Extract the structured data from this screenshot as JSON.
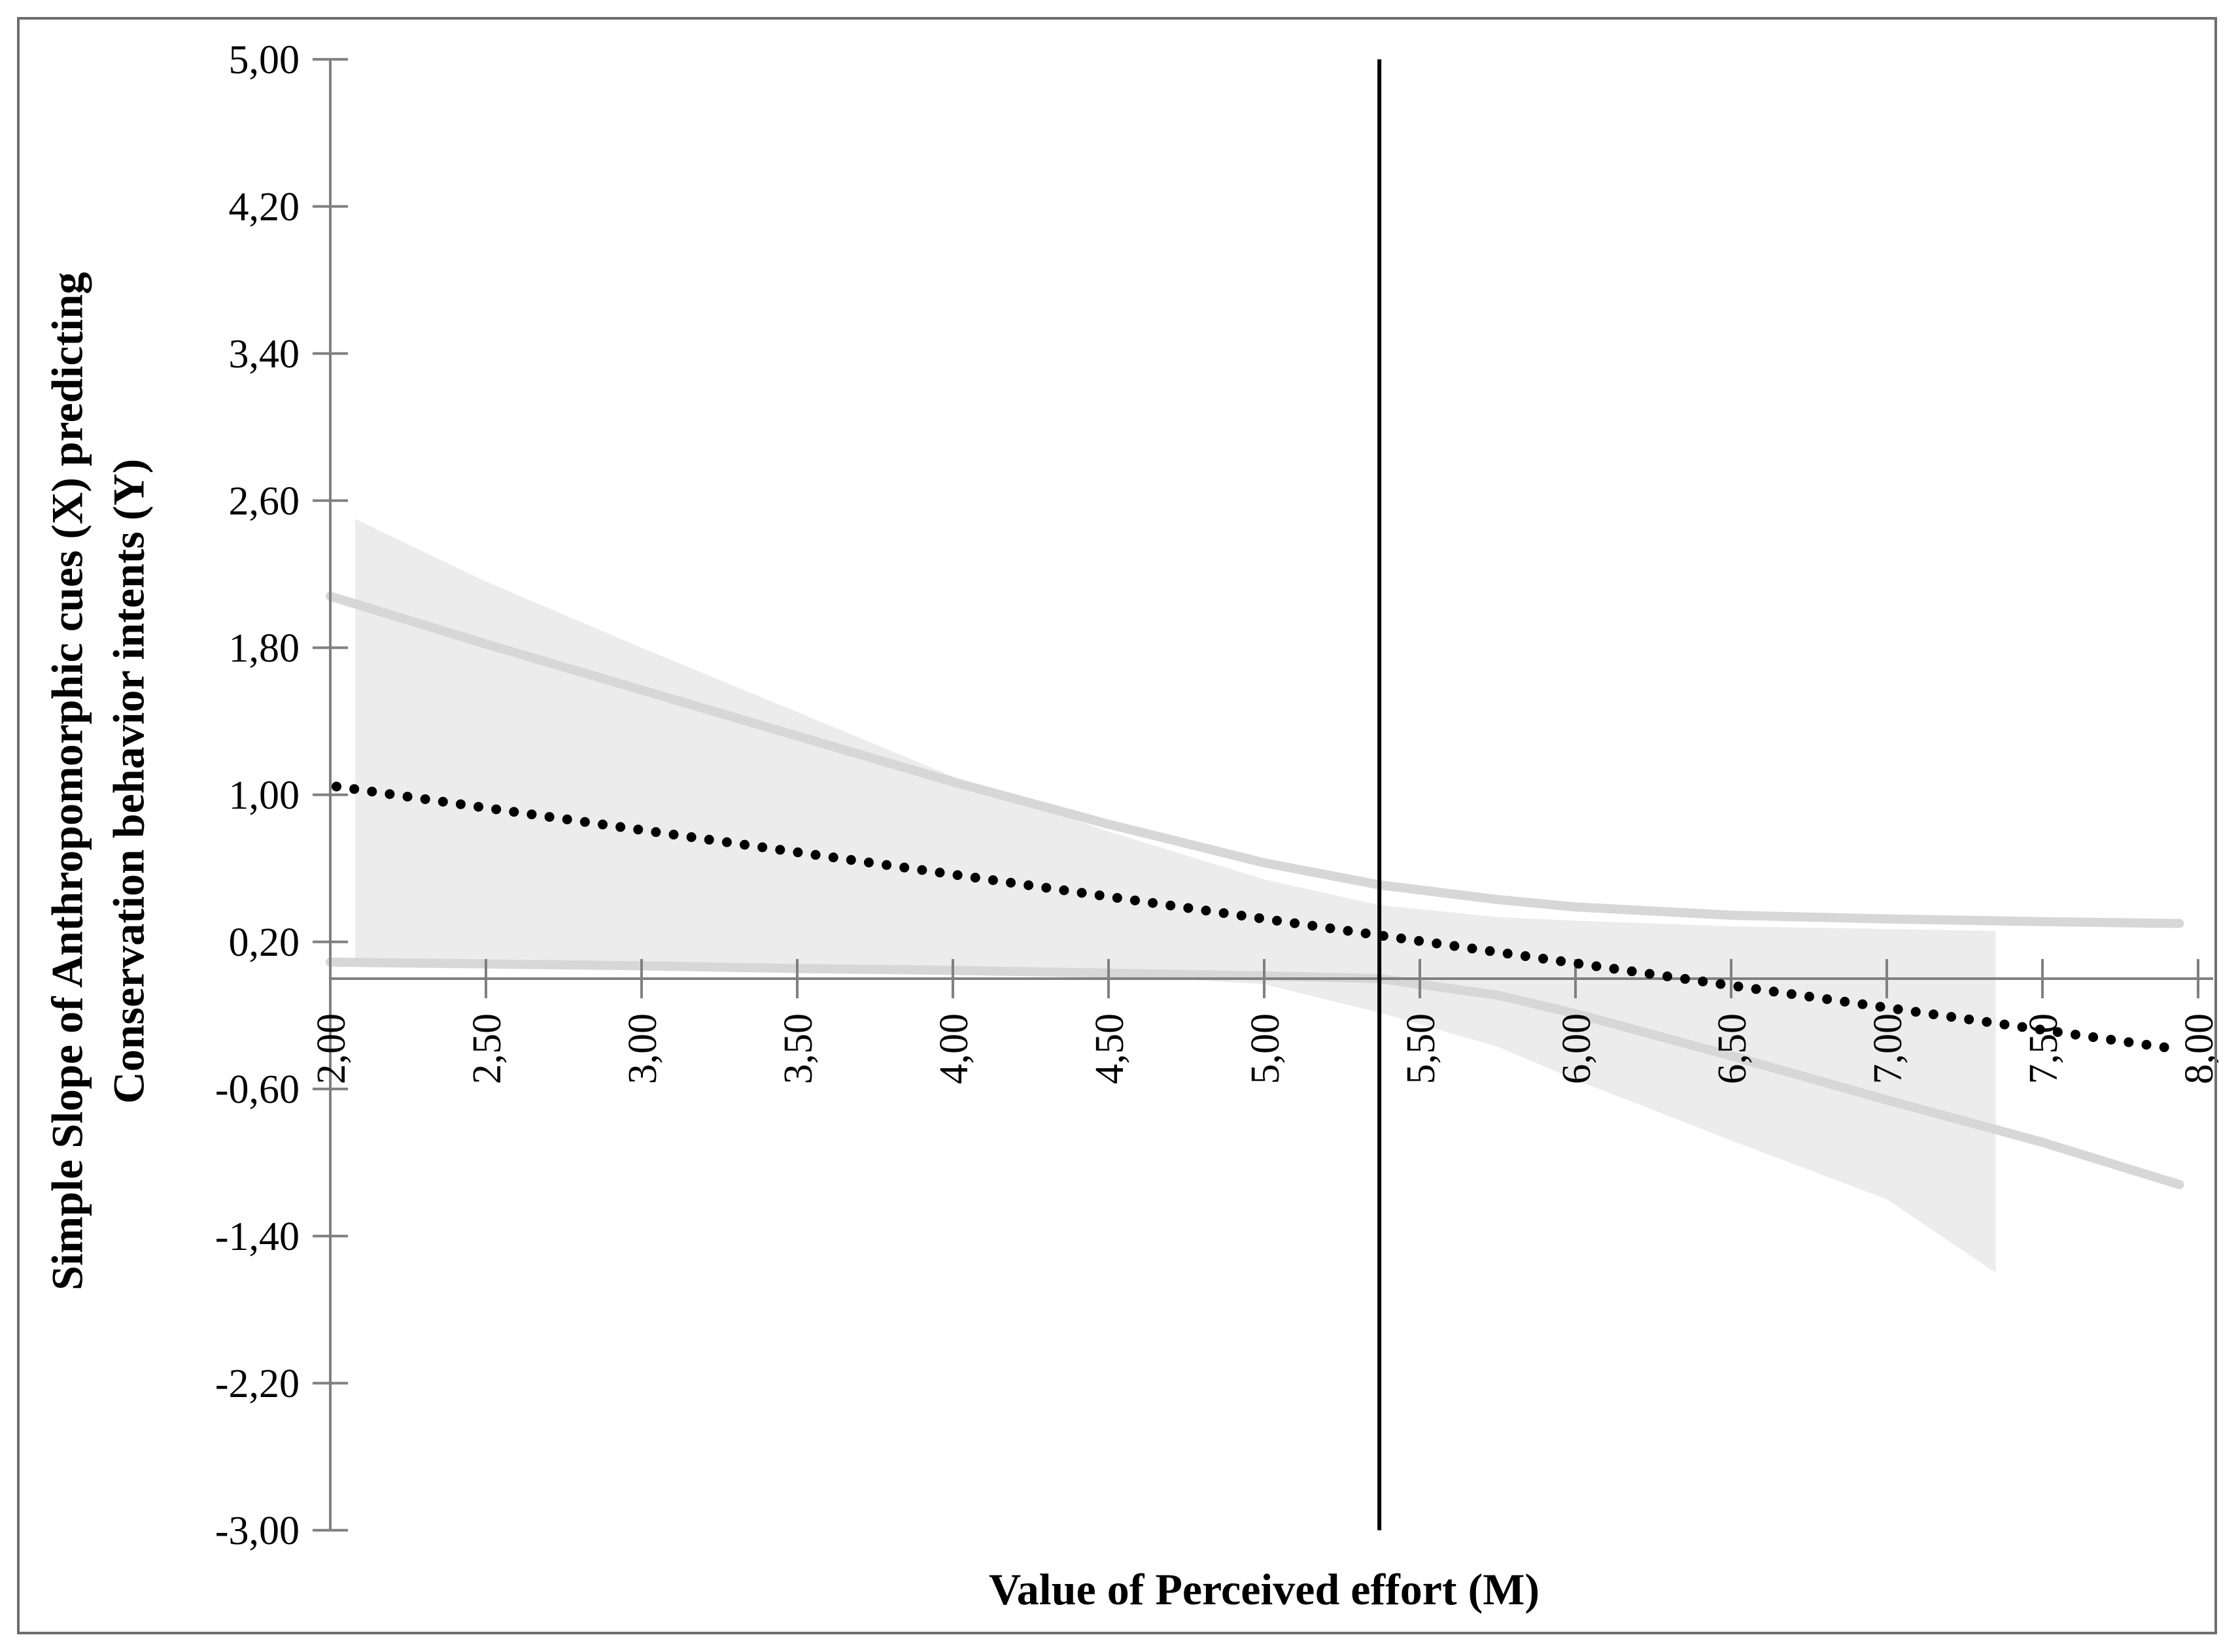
{
  "chart_data": {
    "type": "line",
    "title": "",
    "xlabel": "Value of Perceived effort (M)",
    "ylabel_line1": "Simple Slope of Anthropomorphic cues (X) predicting",
    "ylabel_line2": "Conservation behavior intents (Y)",
    "decimal_separator": ",",
    "grid": false,
    "legend": false,
    "xlim": [
      2.0,
      8.06
    ],
    "ylim": [
      -3.0,
      5.0
    ],
    "axis_cross_y": 0,
    "x_ticks": {
      "values": [
        2.0,
        2.5,
        3.0,
        3.5,
        4.0,
        4.5,
        5.0,
        5.5,
        6.0,
        6.5,
        7.0,
        7.5,
        8.0
      ],
      "labels": [
        "2,00",
        "2,50",
        "3,00",
        "3,50",
        "4,00",
        "4,50",
        "5,00",
        "5,50",
        "6,00",
        "6,50",
        "7,00",
        "7,50",
        "8,00"
      ],
      "label_rotation_deg": -90
    },
    "y_ticks": {
      "values": [
        5.0,
        4.2,
        3.4,
        2.6,
        1.8,
        1.0,
        0.2,
        -0.6,
        -1.4,
        -2.2,
        -3.0
      ],
      "labels": [
        "5,00",
        "4,20",
        "3,40",
        "2,60",
        "1,80",
        "1,00",
        "0,20",
        "-0,60",
        "-1,40",
        "-2,20",
        "-3,00"
      ]
    },
    "series": {
      "simple_slope_line": {
        "name": "simple slope (dotted)",
        "style": "dotted",
        "points": [
          [
            2.02,
            1.045
          ],
          [
            7.94,
            -0.385
          ]
        ]
      },
      "ci_upper_line": {
        "name": "upper 95% CI bound",
        "style": "solid-light-gray",
        "points": [
          [
            2.0,
            2.08
          ],
          [
            2.5,
            1.82
          ],
          [
            3.0,
            1.57
          ],
          [
            3.5,
            1.32
          ],
          [
            4.0,
            1.07
          ],
          [
            4.5,
            0.84
          ],
          [
            5.0,
            0.63
          ],
          [
            5.37,
            0.51
          ],
          [
            5.75,
            0.43
          ],
          [
            6.0,
            0.39
          ],
          [
            6.5,
            0.345
          ],
          [
            7.0,
            0.325
          ],
          [
            7.5,
            0.31
          ],
          [
            7.94,
            0.3
          ]
        ]
      },
      "ci_lower_line": {
        "name": "lower 95% CI bound",
        "style": "solid-light-gray",
        "points": [
          [
            2.0,
            0.09
          ],
          [
            2.5,
            0.08
          ],
          [
            3.0,
            0.07
          ],
          [
            3.5,
            0.055
          ],
          [
            4.0,
            0.045
          ],
          [
            4.5,
            0.03
          ],
          [
            5.0,
            0.015
          ],
          [
            5.37,
            0.0
          ],
          [
            5.75,
            -0.09
          ],
          [
            6.0,
            -0.19
          ],
          [
            6.5,
            -0.42
          ],
          [
            7.0,
            -0.66
          ],
          [
            7.5,
            -0.89
          ],
          [
            7.94,
            -1.12
          ]
        ]
      },
      "ci_band": {
        "name": "shaded confidence region",
        "x_range": [
          2.08,
          7.35
        ],
        "top": [
          [
            2.08,
            2.5
          ],
          [
            2.5,
            2.16
          ],
          [
            3.0,
            1.8
          ],
          [
            3.5,
            1.45
          ],
          [
            4.0,
            1.1
          ],
          [
            4.5,
            0.8
          ],
          [
            5.0,
            0.54
          ],
          [
            5.37,
            0.4
          ],
          [
            5.75,
            0.335
          ],
          [
            6.0,
            0.315
          ],
          [
            6.5,
            0.285
          ],
          [
            7.0,
            0.27
          ],
          [
            7.35,
            0.26
          ]
        ],
        "bottom": [
          [
            2.08,
            0.07
          ],
          [
            2.5,
            0.065
          ],
          [
            3.0,
            0.055
          ],
          [
            3.5,
            0.045
          ],
          [
            4.0,
            0.04
          ],
          [
            4.5,
            0.02
          ],
          [
            5.0,
            -0.03
          ],
          [
            5.37,
            -0.185
          ],
          [
            5.75,
            -0.37
          ],
          [
            6.0,
            -0.55
          ],
          [
            6.5,
            -0.88
          ],
          [
            7.0,
            -1.2
          ],
          [
            7.35,
            -1.6
          ]
        ]
      },
      "jn_vertical_line": {
        "name": "region-of-significance boundary",
        "x": 5.37
      }
    },
    "colors": {
      "band_fill": "#ececec",
      "ci_line": "#d7d7d7",
      "axis": "#808080",
      "figure_border": "#6e6e6e",
      "slope_dots": "#000000",
      "jn_line": "#000000",
      "text": "#000000"
    }
  }
}
